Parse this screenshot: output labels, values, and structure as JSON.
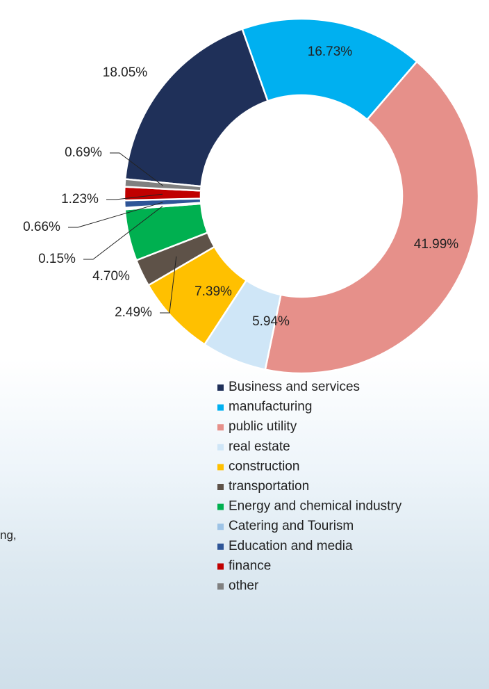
{
  "chart_data": {
    "type": "donut",
    "categories": [
      "Business and services",
      "manufacturing",
      "public utility",
      "real estate",
      "construction",
      "transportation",
      "Energy and chemical industry",
      "Catering and Tourism",
      "Education and media",
      "finance",
      "other"
    ],
    "values": [
      18.05,
      16.73,
      41.99,
      5.94,
      7.39,
      2.49,
      4.7,
      0.15,
      0.66,
      1.23,
      0.69
    ],
    "value_labels": [
      "18.05%",
      "16.73%",
      "41.99%",
      "5.94%",
      "7.39%",
      "2.49%",
      "4.70%",
      "0.15%",
      "0.66%",
      "1.23%",
      "0.69%"
    ],
    "colors": [
      "#1f3059",
      "#00b0f0",
      "#e6908a",
      "#cfe6f7",
      "#ffc000",
      "#5e5248",
      "#00b050",
      "#9dc3e6",
      "#2e5597",
      "#c00000",
      "#808080"
    ],
    "legend": "bottom"
  },
  "side_text": "ng,"
}
